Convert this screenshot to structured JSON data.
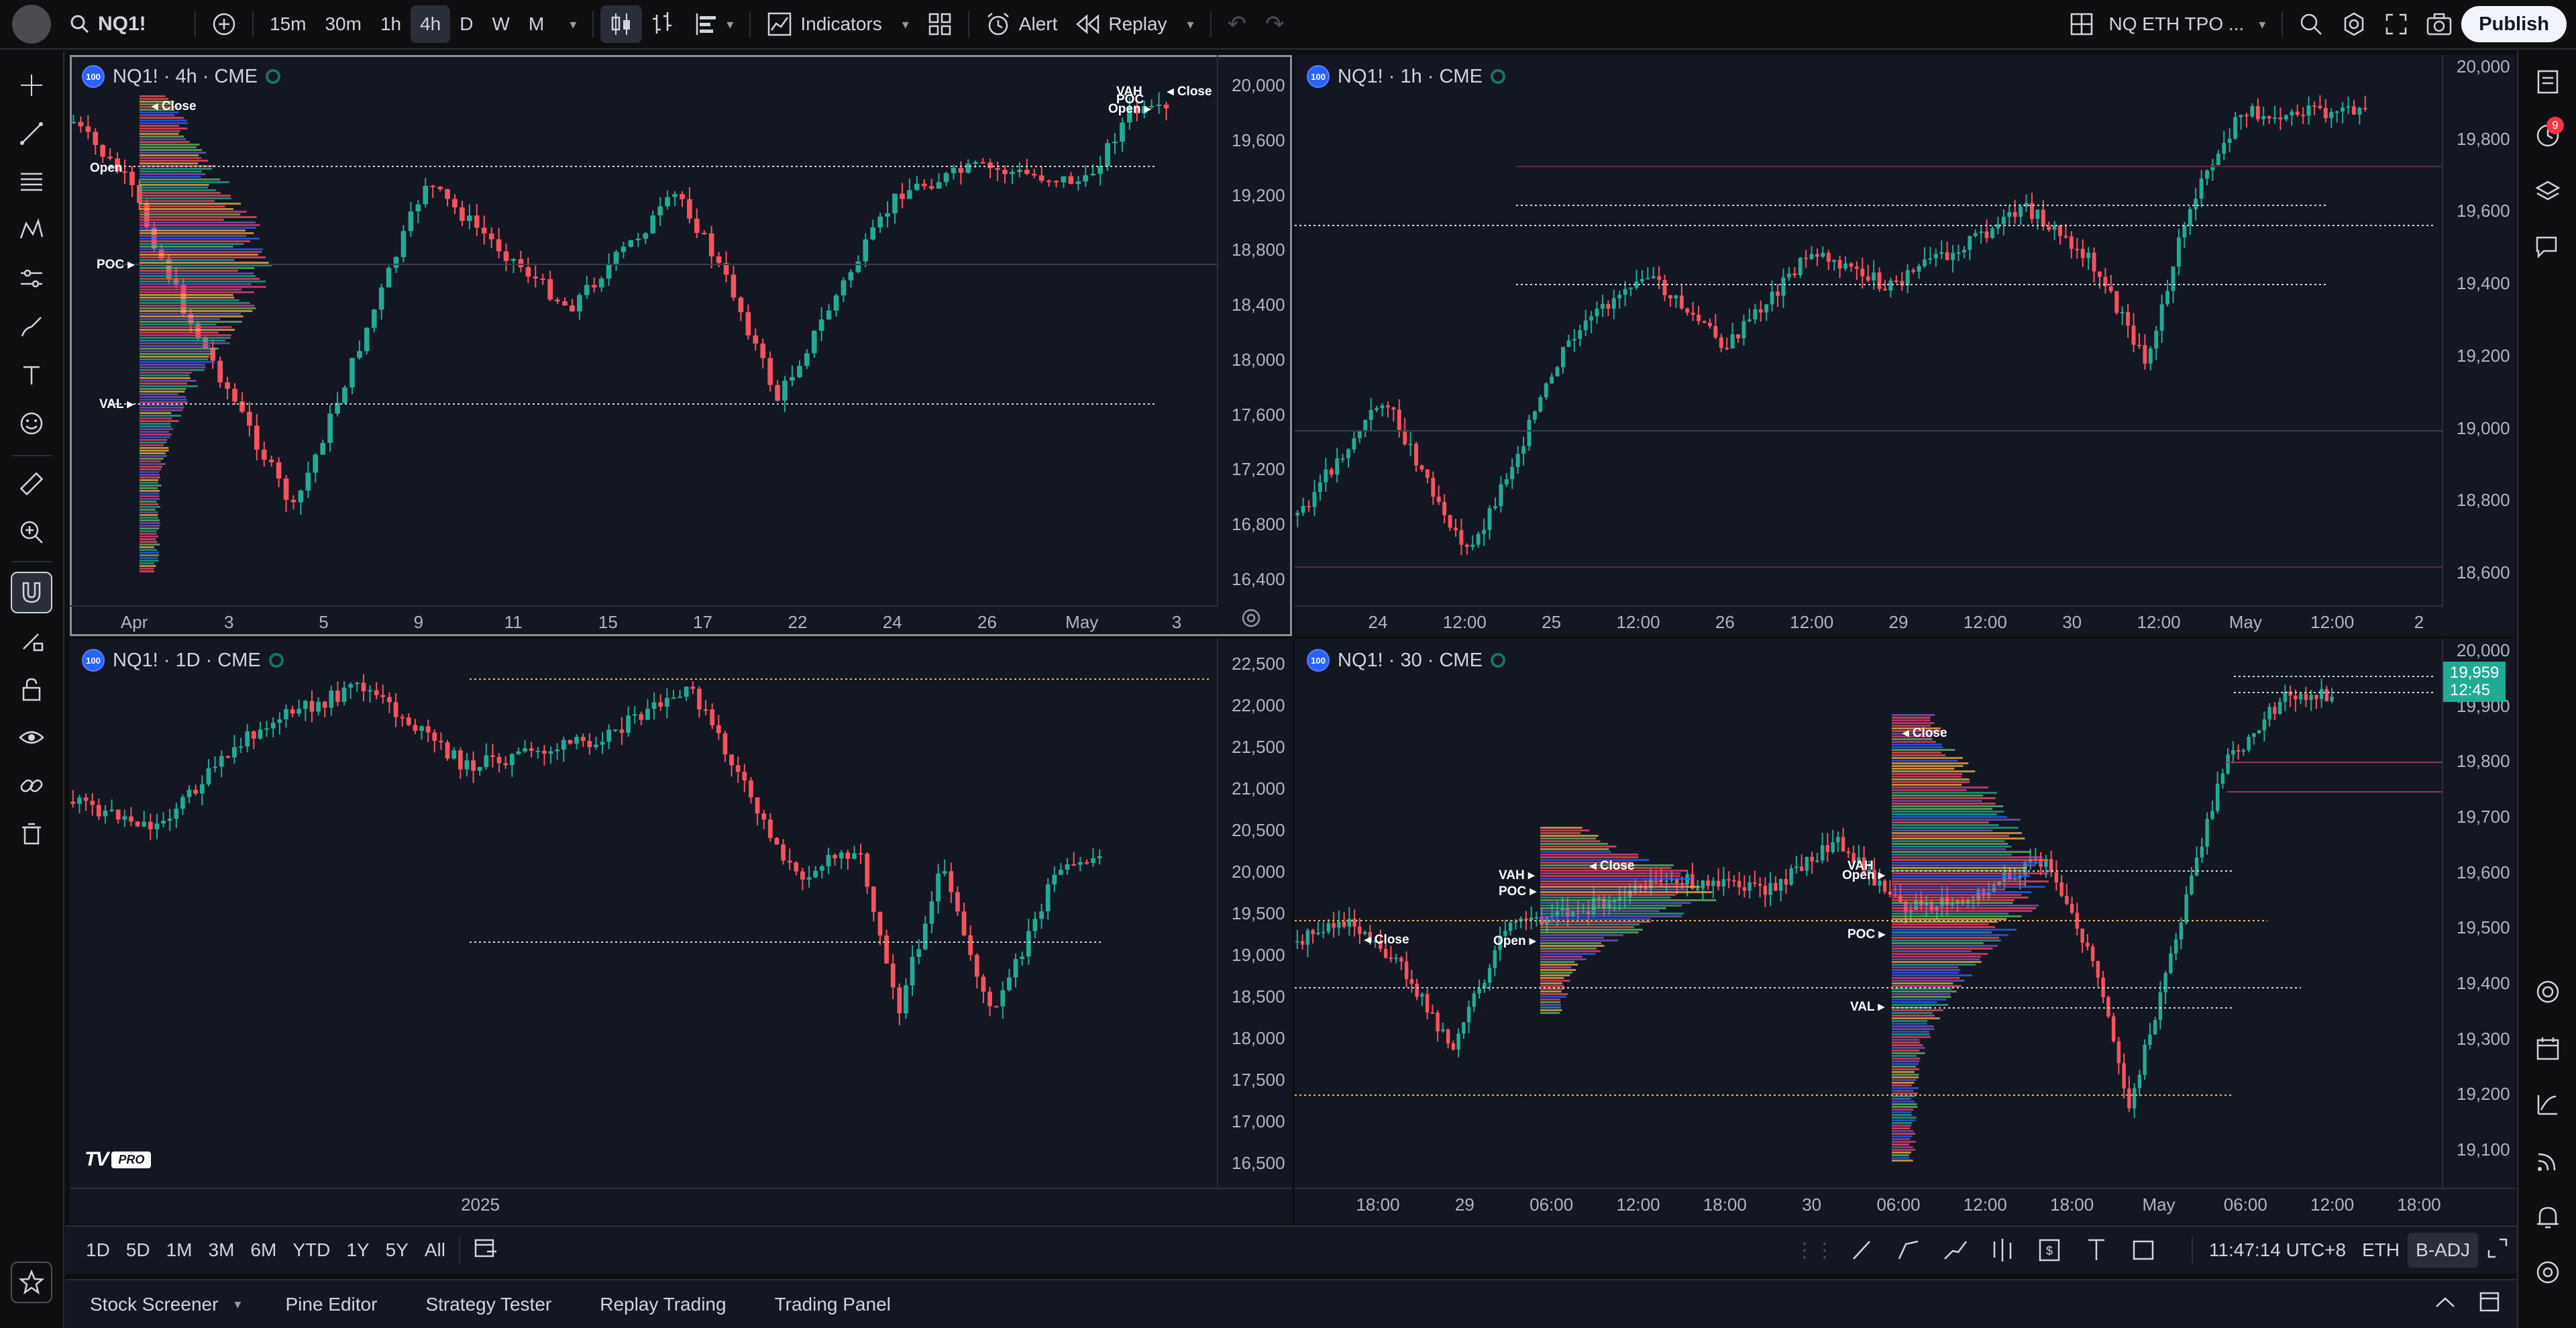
{
  "topbar": {
    "symbol": "NQ1!",
    "intervals": [
      "15m",
      "30m",
      "1h",
      "4h",
      "D",
      "W",
      "M"
    ],
    "active_interval": "4h",
    "indicators_label": "Indicators",
    "alert_label": "Alert",
    "replay_label": "Replay",
    "layout_name": "NQ ETH TPO ...",
    "publish_label": "Publish"
  },
  "panes": [
    {
      "id": "top-left",
      "legend": "NQ1! · 4h · CME",
      "y_ticks": [
        "20,000",
        "19,600",
        "19,200",
        "18,800",
        "18,400",
        "18,000",
        "17,600",
        "17,200",
        "16,800",
        "16,400"
      ],
      "x_ticks": [
        "Apr",
        "3",
        "5",
        "9",
        "11",
        "15",
        "17",
        "22",
        "24",
        "26",
        "May",
        "3"
      ],
      "profile_labels": [
        "Close",
        "Open",
        "POC",
        "VAL",
        "VAH",
        "POC",
        "Open",
        "Close"
      ]
    },
    {
      "id": "top-right",
      "legend": "NQ1! · 1h · CME",
      "y_ticks": [
        "20,000",
        "19,800",
        "19,600",
        "19,400",
        "19,200",
        "19,000",
        "18,800",
        "18,600"
      ],
      "x_ticks": [
        "24",
        "12:00",
        "25",
        "12:00",
        "26",
        "12:00",
        "29",
        "12:00",
        "30",
        "12:00",
        "May",
        "12:00",
        "2"
      ]
    },
    {
      "id": "bottom-left",
      "legend": "NQ1! · 1D · CME",
      "y_ticks": [
        "22,500",
        "22,000",
        "21,500",
        "21,000",
        "20,500",
        "20,000",
        "19,500",
        "19,000",
        "18,500",
        "18,000",
        "17,500",
        "17,000",
        "16,500"
      ],
      "x_ticks": [
        "2025"
      ]
    },
    {
      "id": "bottom-right",
      "legend": "NQ1! · 30 · CME",
      "y_ticks": [
        "20,000",
        "19,900",
        "19,800",
        "19,700",
        "19,600",
        "19,500",
        "19,400",
        "19,300",
        "19,200",
        "19,100"
      ],
      "x_ticks": [
        "18:00",
        "29",
        "06:00",
        "12:00",
        "18:00",
        "30",
        "06:00",
        "12:00",
        "18:00",
        "May",
        "06:00",
        "12:00",
        "18:00"
      ],
      "last_price": "19,959",
      "countdown": "12:45",
      "profile_labels": [
        "Close",
        "VAH",
        "POC",
        "Close",
        "Open",
        "VAH",
        "Open",
        "POC",
        "VAL",
        "Close"
      ]
    }
  ],
  "ranges": [
    "1D",
    "5D",
    "1M",
    "3M",
    "6M",
    "YTD",
    "1Y",
    "5Y",
    "All"
  ],
  "status": {
    "time": "11:47:14 UTC+8",
    "session": "ETH",
    "adjust": "B-ADJ"
  },
  "bottom_tabs": [
    "Stock Screener",
    "Pine Editor",
    "Strategy Tester",
    "Replay Trading",
    "Trading Panel"
  ],
  "colors": {
    "up": "#22ab94",
    "down": "#f7525f",
    "bg": "#131722",
    "grid": "#2a2e39",
    "accent": "#2962ff"
  },
  "logo": "TV PRO",
  "notifications_count": "9"
}
